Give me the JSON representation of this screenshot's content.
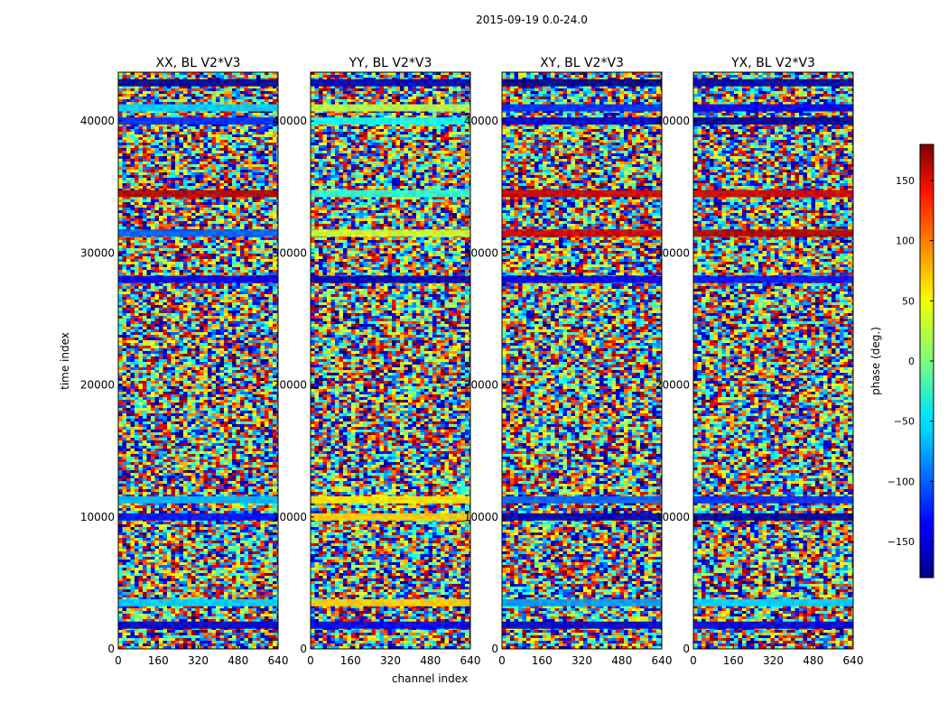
{
  "figure": {
    "suptitle": "2015-09-19 0.0-24.0"
  },
  "chart_data": {
    "type": "heatmap",
    "suptitle": "2015-09-19 0.0-24.0",
    "xlabel": "channel index",
    "ylabel": "time index",
    "xlim": [
      0,
      640
    ],
    "ylim": [
      0,
      43700
    ],
    "xticks": [
      0,
      160,
      320,
      480,
      640
    ],
    "yticks": [
      0,
      10000,
      20000,
      30000,
      40000
    ],
    "panels": [
      {
        "title": "XX, BL V2*V3",
        "polarization": "XX"
      },
      {
        "title": "YY, BL V2*V3",
        "polarization": "YY"
      },
      {
        "title": "XY, BL V2*V3",
        "polarization": "XY"
      },
      {
        "title": "YX, BL V2*V3",
        "polarization": "YX"
      }
    ],
    "colorbar": {
      "label": "phase (deg.)",
      "colormap": "jet",
      "range": [
        -180,
        180
      ],
      "ticks": [
        -150,
        -100,
        -50,
        0,
        50,
        100,
        150
      ],
      "tick_labels": [
        "−150",
        "−100",
        "−50",
        "0",
        "50",
        "100",
        "150"
      ]
    },
    "bands": [
      {
        "t": 42900,
        "phase": [
          -170,
          -160,
          -175,
          -165
        ]
      },
      {
        "t": 41000,
        "phase": [
          -60,
          20,
          -120,
          -140
        ]
      },
      {
        "t": 40000,
        "phase": [
          -120,
          -40,
          -150,
          -170
        ]
      },
      {
        "t": 34500,
        "phase": [
          160,
          -30,
          150,
          150
        ]
      },
      {
        "t": 31500,
        "phase": [
          -100,
          30,
          150,
          160
        ]
      },
      {
        "t": 28000,
        "phase": [
          -140,
          -160,
          -140,
          -130
        ]
      },
      {
        "t": 11300,
        "phase": [
          -70,
          50,
          -100,
          -120
        ]
      },
      {
        "t": 10000,
        "phase": [
          -130,
          60,
          -160,
          -170
        ]
      },
      {
        "t": 3500,
        "phase": [
          -60,
          60,
          -80,
          -60
        ]
      },
      {
        "t": 1800,
        "phase": [
          -150,
          -140,
          -150,
          -145
        ]
      }
    ]
  }
}
